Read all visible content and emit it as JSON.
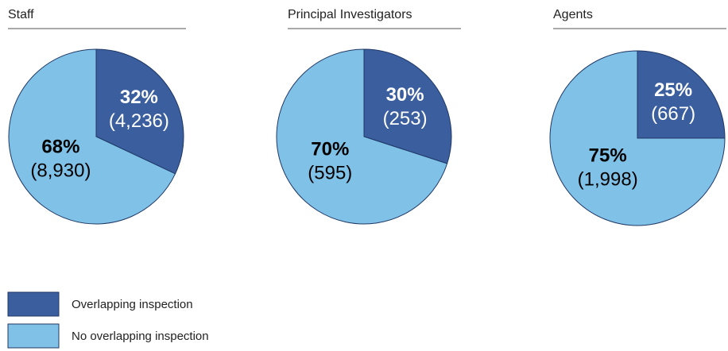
{
  "chart_data": [
    {
      "type": "pie",
      "title": "Staff",
      "categories": [
        "Overlapping inspection",
        "No overlapping inspection"
      ],
      "values": [
        32,
        68
      ],
      "value_labels": [
        "32%",
        "68%"
      ],
      "counts": [
        4236,
        8930
      ],
      "count_labels": [
        "(4,236)",
        "(8,930)"
      ],
      "colors": [
        "#3b5e9e",
        "#80c1e7"
      ]
    },
    {
      "type": "pie",
      "title": "Principal Investigators",
      "categories": [
        "Overlapping inspection",
        "No overlapping inspection"
      ],
      "values": [
        30,
        70
      ],
      "value_labels": [
        "30%",
        "70%"
      ],
      "counts": [
        253,
        595
      ],
      "count_labels": [
        "(253)",
        "(595)"
      ],
      "colors": [
        "#3b5e9e",
        "#80c1e7"
      ]
    },
    {
      "type": "pie",
      "title": "Agents",
      "categories": [
        "Overlapping inspection",
        "No overlapping inspection"
      ],
      "values": [
        25,
        75
      ],
      "value_labels": [
        "25%",
        "75%"
      ],
      "counts": [
        667,
        1998
      ],
      "count_labels": [
        "(667)",
        "(1,998)"
      ],
      "colors": [
        "#3b5e9e",
        "#80c1e7"
      ]
    }
  ]
}
